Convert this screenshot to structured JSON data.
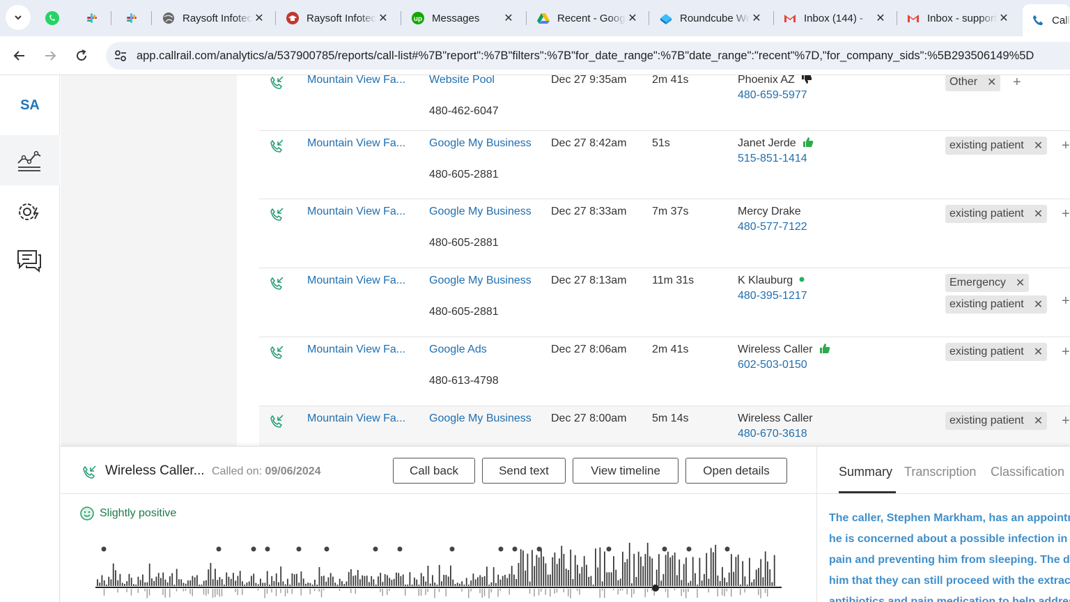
{
  "browser": {
    "tabs": [
      {
        "title": "Raysoft Infotech"
      },
      {
        "title": "Raysoft Infotech"
      },
      {
        "title": "Messages"
      },
      {
        "title": "Recent - Google Drive"
      },
      {
        "title": "Roundcube Webmail"
      },
      {
        "title": "Inbox (144) -"
      },
      {
        "title": "Inbox - support"
      },
      {
        "title": "Call"
      }
    ],
    "url": "app.callrail.com/analytics/a/537900785/reports/call-list#%7B\"report\":%7B\"filters\":%7B\"for_date_range\":%7B\"date_range\":\"recent\"%7D,\"for_company_sids\":%5B293506149%5D"
  },
  "sidebar": {
    "logo": "SA"
  },
  "calls": [
    {
      "company": "Mountain View Fa...",
      "source": "Website Pool",
      "tracking_number": "480-462-6047",
      "date": "Dec 27 9:35am",
      "duration": "2m 41s",
      "caller": "Phoenix AZ",
      "caller_phone": "480-659-5977",
      "rating": "thumbs-down",
      "tags": [
        "Other"
      ]
    },
    {
      "company": "Mountain View Fa...",
      "source": "Google My Business",
      "tracking_number": "480-605-2881",
      "date": "Dec 27 8:42am",
      "duration": "51s",
      "caller": "Janet Jerde",
      "caller_phone": "515-851-1414",
      "rating": "thumbs-up",
      "tags": [
        "existing patient"
      ]
    },
    {
      "company": "Mountain View Fa...",
      "source": "Google My Business",
      "tracking_number": "480-605-2881",
      "date": "Dec 27 8:33am",
      "duration": "7m 37s",
      "caller": "Mercy Drake",
      "caller_phone": "480-577-7122",
      "rating": "",
      "tags": [
        "existing patient"
      ]
    },
    {
      "company": "Mountain View Fa...",
      "source": "Google My Business",
      "tracking_number": "480-605-2881",
      "date": "Dec 27 8:13am",
      "duration": "11m 31s",
      "caller": "K Klauburg",
      "caller_phone": "480-395-1217",
      "rating": "green-dot",
      "tags": [
        "Emergency",
        "existing patient"
      ]
    },
    {
      "company": "Mountain View Fa...",
      "source": "Google Ads",
      "tracking_number": "480-613-4798",
      "date": "Dec 27 8:06am",
      "duration": "2m 41s",
      "caller": "Wireless Caller",
      "caller_phone": "602-503-0150",
      "rating": "thumbs-up",
      "tags": [
        "existing patient"
      ]
    },
    {
      "company": "Mountain View Fa...",
      "source": "Google My Business",
      "tracking_number": "",
      "date": "Dec 27 8:00am",
      "duration": "5m 14s",
      "caller": "Wireless Caller",
      "caller_phone": "480-670-3618",
      "rating": "",
      "tags": [
        "existing patient"
      ]
    }
  ],
  "detail": {
    "title": "Wireless Caller...",
    "called_on_label": "Called on:",
    "called_on_date": "09/06/2024",
    "buttons": {
      "call_back": "Call back",
      "send_text": "Send text",
      "view_timeline": "View timeline",
      "open_details": "Open details"
    },
    "sentiment": "Slightly positive",
    "tabs": {
      "summary": "Summary",
      "transcription": "Transcription",
      "classification": "Classification"
    },
    "summary_lines": [
      "The caller, Stephen Markham, has an appointm",
      "he is concerned about a possible infection in hi",
      "pain and preventing him from sleeping. The de",
      "him that they can still proceed with the extract",
      "antibiotics and pain medication to help addres"
    ]
  },
  "colors": {
    "link": "#1f6fb0",
    "accent": "#1f76b9",
    "positive": "#1d7a4a",
    "summary": "#3f8fcb"
  }
}
